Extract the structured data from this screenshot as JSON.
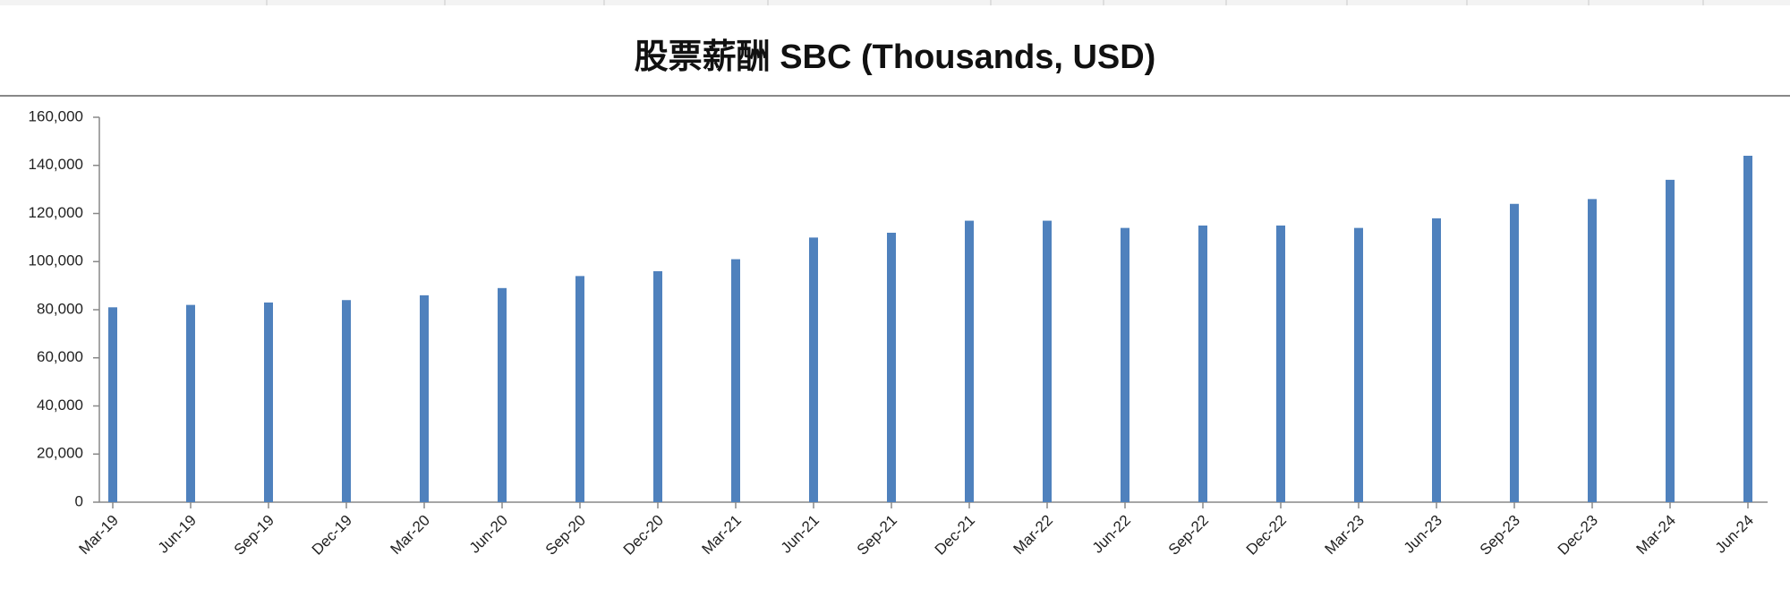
{
  "chart_data": {
    "type": "bar",
    "title": "股票薪酬 SBC (Thousands, USD)",
    "categories": [
      "Mar-19",
      "Jun-19",
      "Sep-19",
      "Dec-19",
      "Mar-20",
      "Jun-20",
      "Sep-20",
      "Dec-20",
      "Mar-21",
      "Jun-21",
      "Sep-21",
      "Dec-21",
      "Mar-22",
      "Jun-22",
      "Sep-22",
      "Dec-22",
      "Mar-23",
      "Jun-23",
      "Sep-23",
      "Dec-23",
      "Mar-24",
      "Jun-24"
    ],
    "values": [
      81000,
      82000,
      83000,
      84000,
      86000,
      89000,
      94000,
      96000,
      101000,
      110000,
      112000,
      117000,
      117000,
      114000,
      115000,
      115000,
      114000,
      118000,
      124000,
      126000,
      134000,
      144000
    ],
    "color": "#4f81bd",
    "ylim": [
      0,
      160000
    ],
    "yticks": [
      0,
      {
        "value": 20000,
        "label": "20,000"
      },
      {
        "value": 40000,
        "label": "40,000"
      },
      {
        "value": 60000,
        "label": "60,000"
      },
      {
        "value": 80000,
        "label": "80,000"
      },
      {
        "value": 100000,
        "label": "100,000"
      },
      {
        "value": 120000,
        "label": "120,000"
      },
      {
        "value": 140000,
        "label": "140,000"
      },
      {
        "value": 160000,
        "label": "160,000"
      }
    ],
    "grid": false
  }
}
